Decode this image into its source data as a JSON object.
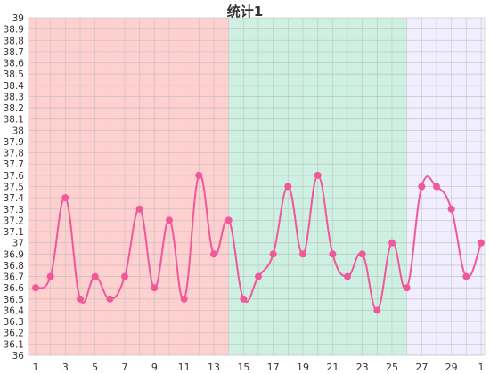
{
  "chart_data": {
    "type": "line",
    "title": "统计1",
    "xlabel": "",
    "ylabel": "",
    "x": [
      1,
      2,
      3,
      4,
      5,
      6,
      7,
      8,
      9,
      10,
      11,
      12,
      13,
      14,
      15,
      16,
      17,
      18,
      19,
      20,
      21,
      22,
      23,
      24,
      25,
      26,
      27,
      28,
      29,
      30,
      1
    ],
    "x_tick_labels": [
      "1",
      "3",
      "5",
      "7",
      "9",
      "11",
      "13",
      "15",
      "17",
      "19",
      "21",
      "23",
      "25",
      "27",
      "29",
      "1"
    ],
    "y_tick_labels": [
      "36",
      "36.1",
      "36.2",
      "36.3",
      "36.4",
      "36.5",
      "36.6",
      "36.7",
      "36.8",
      "36.9",
      "37",
      "37.1",
      "37.2",
      "37.3",
      "37.4",
      "37.5",
      "37.6",
      "37.7",
      "37.8",
      "37.9",
      "38",
      "38.1",
      "38.2",
      "38.3",
      "38.4",
      "38.5",
      "38.6",
      "38.7",
      "38.8",
      "38.9",
      "39"
    ],
    "ylim": [
      36,
      39
    ],
    "grid": true,
    "series": [
      {
        "color": "#f0589a",
        "values": [
          36.6,
          36.7,
          37.4,
          36.5,
          36.7,
          36.5,
          36.7,
          37.3,
          36.6,
          37.2,
          36.5,
          37.6,
          36.9,
          37.2,
          36.5,
          36.7,
          36.9,
          37.5,
          36.9,
          37.6,
          36.9,
          36.7,
          36.9,
          36.4,
          37.0,
          36.6,
          37.5,
          37.5,
          37.3,
          36.7,
          37.0
        ]
      }
    ],
    "bands": [
      {
        "from_index": 0,
        "to_index": 13,
        "color": "#ffd0d0"
      },
      {
        "from_index": 13,
        "to_index": 25,
        "color": "#cdf0e2"
      },
      {
        "from_index": 25,
        "to_index": 30,
        "color": "#f1eeff"
      }
    ]
  }
}
